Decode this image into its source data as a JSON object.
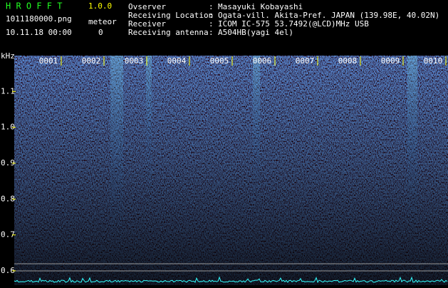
{
  "header": {
    "app_name": "H R O F F T",
    "version": "1.0.0",
    "file": "1011180000.png",
    "meteor_label": "meteor",
    "datetime": "10.11.18 00:00",
    "meteor_count": "0",
    "separator": ":",
    "info": [
      {
        "label": "Ovserver",
        "value": "Masayuki Kobayashi"
      },
      {
        "label": "Receiving Location",
        "value": "Ogata-vill. Akita-Pref. JAPAN (139.98E, 40.02N)"
      },
      {
        "label": "Receiver",
        "value": "ICOM IC-575 53.7492(@LCD)MHz USB"
      },
      {
        "label": "Receiving antenna",
        "value": "A504HB(yagi 4el)"
      }
    ]
  },
  "spectrogram": {
    "y_unit": "kHz",
    "ylim": [
      0.56,
      1.2
    ],
    "yticks": [
      1.1,
      {
        "value": 1.0,
        "label": "1.0"
      },
      0.9,
      0.8,
      0.7,
      0.6
    ],
    "time_markers": [
      "0001",
      "0002",
      "0003",
      "0004",
      "0005",
      "0006",
      "0007",
      "0008",
      "0009",
      "0010"
    ]
  }
}
